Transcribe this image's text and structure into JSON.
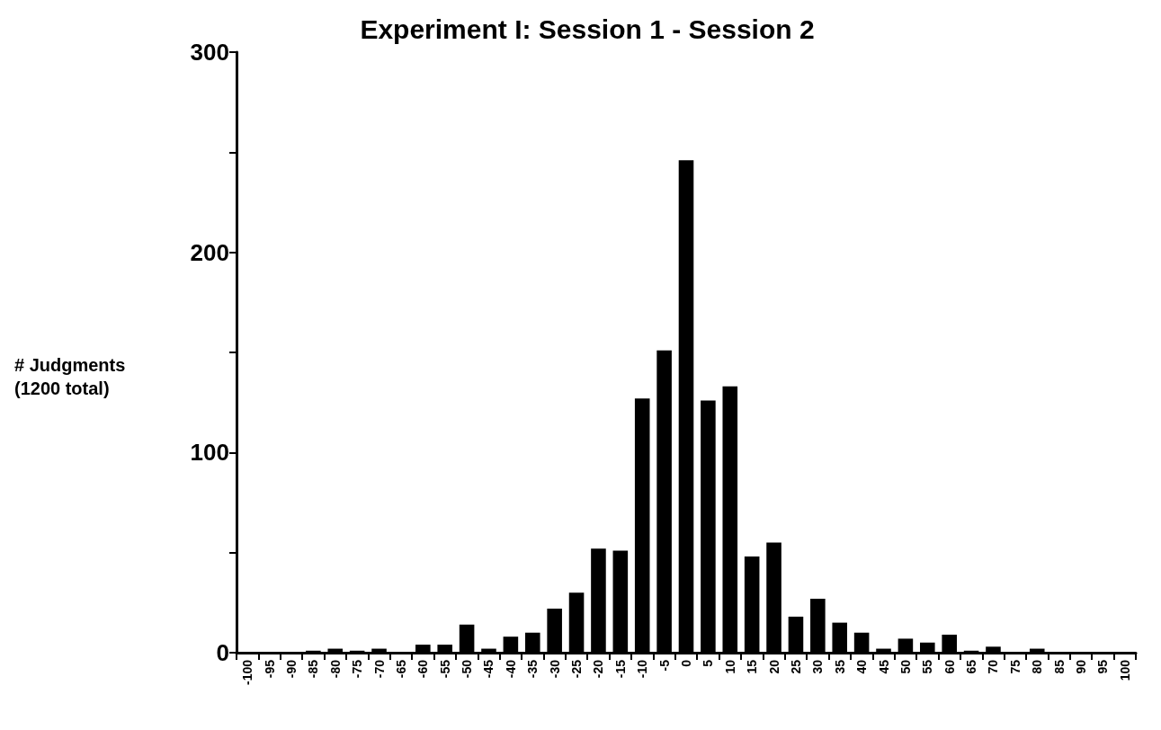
{
  "chart_data": {
    "type": "bar",
    "title": "Experiment I: Session 1 - Session 2",
    "ylabel": "# Judgments\n(1200 total)",
    "categories": [
      "-100",
      "-95",
      "-90",
      "-85",
      "-80",
      "-75",
      "-70",
      "-65",
      "-60",
      "-55",
      "-50",
      "-45",
      "-40",
      "-35",
      "-30",
      "-25",
      "-20",
      "-15",
      "-10",
      "-5",
      "0",
      "5",
      "10",
      "15",
      "20",
      "25",
      "30",
      "35",
      "40",
      "45",
      "50",
      "55",
      "60",
      "65",
      "70",
      "75",
      "80",
      "85",
      "90",
      "95",
      "100"
    ],
    "values": [
      0,
      0,
      0,
      1,
      2,
      1,
      2,
      0,
      4,
      4,
      14,
      2,
      8,
      10,
      22,
      30,
      52,
      51,
      127,
      151,
      246,
      126,
      133,
      48,
      55,
      18,
      27,
      15,
      10,
      2,
      7,
      5,
      9,
      1,
      3,
      0,
      2,
      0,
      0,
      0,
      0
    ],
    "color": "#000000",
    "ylim": [
      0,
      300
    ],
    "yticks": [
      0,
      {
        "value": 50,
        "label": null
      },
      100,
      {
        "value": 150,
        "label": null
      },
      200,
      {
        "value": 250,
        "label": null
      },
      300
    ],
    "grid": false
  }
}
